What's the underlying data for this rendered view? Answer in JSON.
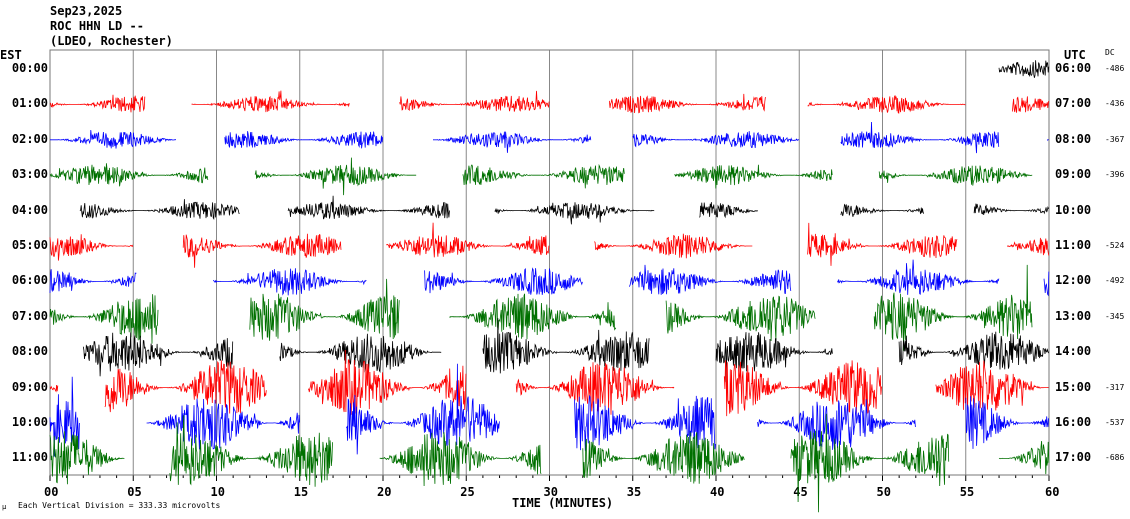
{
  "header": {
    "date": "Sep23,2025",
    "station": "ROC HHN LD --",
    "network": "(LDEO, Rochester)"
  },
  "chart_data": {
    "type": "line",
    "title": "Sep23,2025 ROC HHN LD --",
    "left_axis_label": "EST",
    "right_axis_label": "UTC",
    "dc_label": "DC",
    "xlabel": "TIME (MINUTES)",
    "xlim": [
      0,
      60
    ],
    "x_ticks": [
      "00",
      "05",
      "10",
      "15",
      "20",
      "25",
      "30",
      "35",
      "40",
      "45",
      "50",
      "55",
      "60"
    ],
    "grid": "vertical every 5 minutes",
    "scale_note": "Each Vertical Division =  333.33 microvolts",
    "trace_colors": [
      "#000000",
      "#ff0000",
      "#0000ff",
      "#007000"
    ],
    "rows": [
      {
        "est": "00:00",
        "utc": "06:00",
        "dc": "-486",
        "color": "#000000",
        "amp": 0.25,
        "segments": [
          [
            57,
            60
          ]
        ]
      },
      {
        "est": "01:00",
        "utc": "07:00",
        "dc": "-436",
        "color": "#ff0000",
        "amp": 0.25,
        "segments": [
          [
            0,
            5.7
          ],
          [
            8.5,
            18
          ],
          [
            21,
            30
          ],
          [
            33.6,
            43
          ],
          [
            45.5,
            55
          ],
          [
            57.8,
            60
          ]
        ]
      },
      {
        "est": "02:00",
        "utc": "08:00",
        "dc": "-367",
        "color": "#0000ff",
        "amp": 0.25,
        "segments": [
          [
            0,
            7.6
          ],
          [
            10.5,
            20
          ],
          [
            23,
            32.5
          ],
          [
            35,
            45
          ],
          [
            47.5,
            57
          ],
          [
            59.9,
            60
          ]
        ]
      },
      {
        "est": "03:00",
        "utc": "09:00",
        "dc": "-396",
        "color": "#007000",
        "amp": 0.3,
        "segments": [
          [
            0,
            9.5
          ],
          [
            12.3,
            22
          ],
          [
            24.8,
            34.5
          ],
          [
            37.5,
            47
          ],
          [
            49.8,
            59
          ]
        ]
      },
      {
        "est": "04:00",
        "utc": "10:00",
        "dc": "",
        "color": "#000000",
        "amp": 0.25,
        "segments": [
          [
            1.8,
            11.4
          ],
          [
            14.3,
            24
          ],
          [
            26.7,
            36.3
          ],
          [
            39,
            42.5
          ],
          [
            47.5,
            52.5
          ],
          [
            55.5,
            60
          ]
        ]
      },
      {
        "est": "05:00",
        "utc": "11:00",
        "dc": "-524",
        "color": "#ff0000",
        "amp": 0.35,
        "segments": [
          [
            0,
            5
          ],
          [
            8,
            17.5
          ],
          [
            20.2,
            30
          ],
          [
            32.7,
            42.2
          ],
          [
            45.5,
            54.5
          ],
          [
            57.5,
            60
          ]
        ]
      },
      {
        "est": "06:00",
        "utc": "12:00",
        "dc": "-492",
        "color": "#0000ff",
        "amp": 0.4,
        "segments": [
          [
            0,
            5.2
          ],
          [
            9.8,
            19
          ],
          [
            22.5,
            32
          ],
          [
            34.8,
            44.5
          ],
          [
            47.3,
            57
          ],
          [
            59.7,
            60
          ]
        ]
      },
      {
        "est": "07:00",
        "utc": "13:00",
        "dc": "-345",
        "color": "#007000",
        "amp": 0.7,
        "segments": [
          [
            0,
            6.5
          ],
          [
            12,
            21
          ],
          [
            24,
            34
          ],
          [
            37,
            46
          ],
          [
            49.5,
            59
          ]
        ]
      },
      {
        "est": "08:00",
        "utc": "14:00",
        "dc": "",
        "color": "#000000",
        "amp": 0.6,
        "segments": [
          [
            2,
            11
          ],
          [
            13.8,
            23.5
          ],
          [
            26,
            36
          ],
          [
            40,
            47
          ],
          [
            51,
            60
          ]
        ]
      },
      {
        "est": "09:00",
        "utc": "15:00",
        "dc": "-317",
        "color": "#ff0000",
        "amp": 0.8,
        "segments": [
          [
            0,
            0.5
          ],
          [
            3.3,
            13
          ],
          [
            15.5,
            25
          ],
          [
            28,
            37.5
          ],
          [
            40.5,
            50
          ],
          [
            53.2,
            60
          ]
        ]
      },
      {
        "est": "10:00",
        "utc": "16:00",
        "dc": "-537",
        "color": "#0000ff",
        "amp": 0.8,
        "segments": [
          [
            0,
            1.8
          ],
          [
            5.8,
            15
          ],
          [
            17.8,
            27
          ],
          [
            31.5,
            40
          ],
          [
            42.5,
            52
          ],
          [
            55,
            60
          ]
        ]
      },
      {
        "est": "11:00",
        "utc": "17:00",
        "dc": "-686",
        "color": "#007000",
        "amp": 0.8,
        "segments": [
          [
            0,
            4.5
          ],
          [
            7.2,
            17
          ],
          [
            19.8,
            29.5
          ],
          [
            32,
            41.7
          ],
          [
            44.5,
            54
          ],
          [
            57,
            60
          ]
        ]
      }
    ]
  }
}
